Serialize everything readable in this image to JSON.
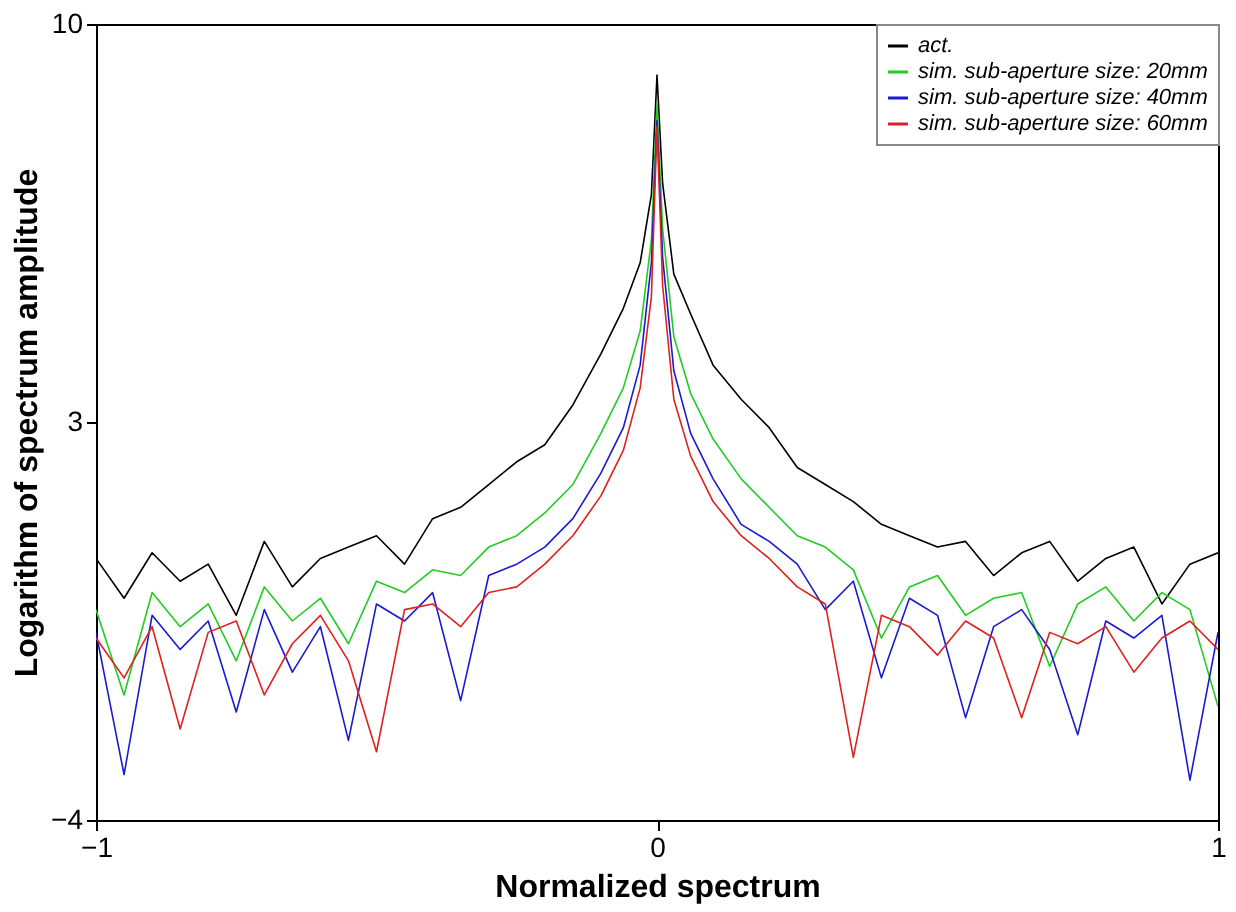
{
  "chart_data": {
    "type": "line",
    "xlabel": "Normalized spectrum",
    "ylabel": "Logarithm of spectrum amplitude",
    "x": [
      -1,
      -0.95,
      -0.9,
      -0.85,
      -0.8,
      -0.75,
      -0.7,
      -0.65,
      -0.6,
      -0.55,
      -0.5,
      -0.45,
      -0.4,
      -0.35,
      -0.3,
      -0.25,
      -0.2,
      -0.15,
      -0.1,
      -0.06,
      -0.03,
      -0.01,
      0,
      0.01,
      0.03,
      0.06,
      0.1,
      0.15,
      0.2,
      0.25,
      0.3,
      0.35,
      0.4,
      0.45,
      0.5,
      0.55,
      0.6,
      0.65,
      0.7,
      0.75,
      0.8,
      0.85,
      0.9,
      0.95,
      1
    ],
    "series": [
      {
        "name": "act.",
        "color": "#000000",
        "values": [
          0.6,
          -0.1,
          0.7,
          0.2,
          0.5,
          -0.4,
          0.9,
          0.1,
          0.6,
          0.8,
          1.0,
          0.5,
          1.3,
          1.5,
          1.9,
          2.3,
          2.6,
          3.3,
          4.2,
          5.0,
          5.8,
          7.0,
          9.1,
          7.2,
          5.6,
          4.9,
          4.0,
          3.4,
          2.9,
          2.2,
          1.9,
          1.6,
          1.2,
          1.0,
          0.8,
          0.9,
          0.3,
          0.7,
          0.9,
          0.2,
          0.6,
          0.8,
          -0.2,
          0.5,
          0.7
        ]
      },
      {
        "name": "sim. sub-aperture size: 20mm",
        "color": "#22cc22",
        "values": [
          -0.3,
          -1.8,
          0.0,
          -0.6,
          -0.2,
          -1.2,
          0.1,
          -0.5,
          -0.1,
          -0.9,
          0.2,
          0.0,
          0.4,
          0.3,
          0.8,
          1.0,
          1.4,
          1.9,
          2.8,
          3.6,
          4.6,
          6.2,
          8.6,
          6.4,
          4.5,
          3.5,
          2.7,
          2.0,
          1.5,
          1.0,
          0.8,
          0.4,
          -0.8,
          0.1,
          0.3,
          -0.4,
          -0.1,
          0.0,
          -1.3,
          -0.2,
          0.1,
          -0.5,
          0.0,
          -0.3,
          -2.0
        ]
      },
      {
        "name": "sim. sub-aperture size: 40mm",
        "color": "#1a1ad0",
        "values": [
          -0.7,
          -3.2,
          -0.4,
          -1.0,
          -0.5,
          -2.1,
          -0.3,
          -1.4,
          -0.6,
          -2.6,
          -0.2,
          -0.5,
          0.0,
          -1.9,
          0.3,
          0.5,
          0.8,
          1.3,
          2.1,
          2.9,
          4.0,
          5.8,
          8.3,
          5.9,
          3.9,
          2.8,
          2.0,
          1.2,
          0.9,
          0.5,
          -0.3,
          0.2,
          -1.5,
          -0.1,
          -0.4,
          -2.2,
          -0.6,
          -0.3,
          -1.0,
          -2.5,
          -0.5,
          -0.8,
          -0.4,
          -3.3,
          -0.7
        ]
      },
      {
        "name": "sim. sub-aperture size: 60mm",
        "color": "#dd2020",
        "values": [
          -0.8,
          -1.5,
          -0.6,
          -2.4,
          -0.7,
          -0.5,
          -1.8,
          -0.9,
          -0.4,
          -1.2,
          -2.8,
          -0.3,
          -0.2,
          -0.6,
          0.0,
          0.1,
          0.5,
          1.0,
          1.7,
          2.5,
          3.6,
          5.2,
          8.2,
          5.4,
          3.4,
          2.4,
          1.6,
          1.0,
          0.6,
          0.1,
          -0.2,
          -2.9,
          -0.4,
          -0.6,
          -1.1,
          -0.5,
          -0.8,
          -2.2,
          -0.7,
          -0.9,
          -0.6,
          -1.4,
          -0.8,
          -0.5,
          -1.0
        ]
      }
    ],
    "xlim": [
      -1,
      1
    ],
    "xticks": [
      -1,
      0,
      1
    ],
    "ylim": [
      -4,
      10
    ],
    "yticks": [
      -4,
      3,
      10
    ],
    "grid": false,
    "legend": "top right",
    "marker": "none",
    "line_style": "solid"
  }
}
